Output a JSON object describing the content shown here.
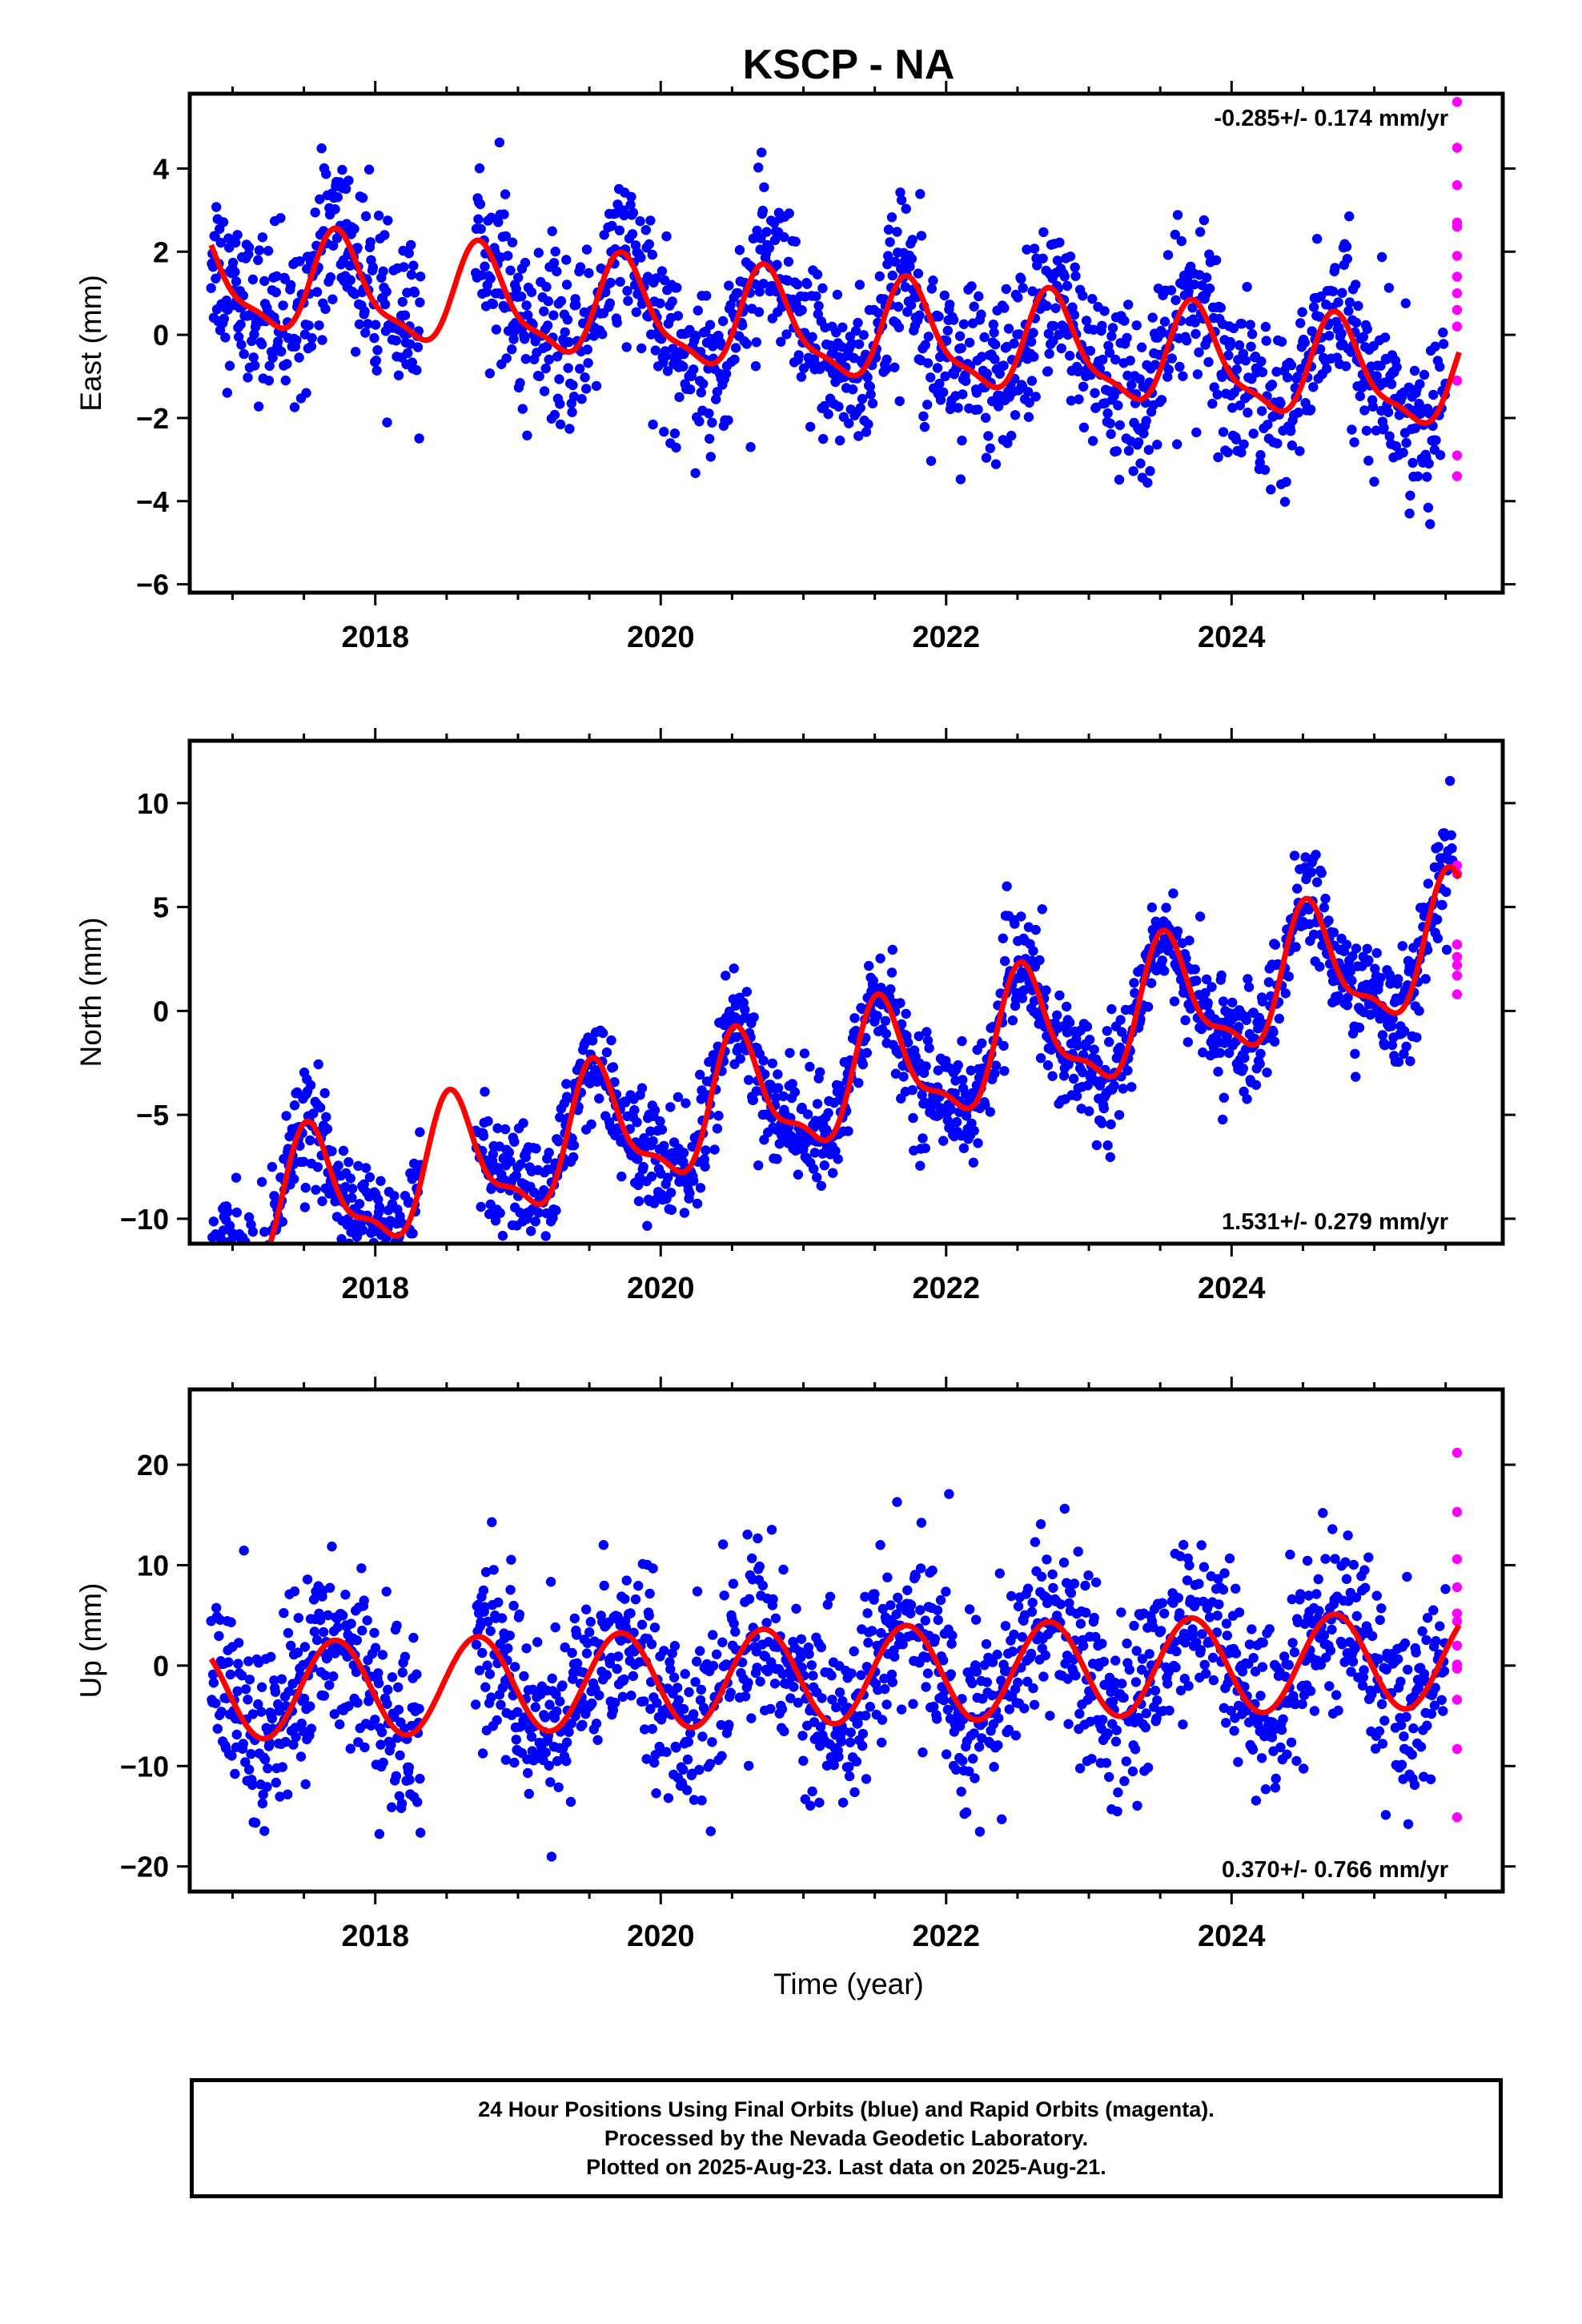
{
  "title": "KSCP - NA",
  "xlabel": "Time (year)",
  "caption": [
    "24 Hour Positions Using Final Orbits (blue) and Rapid Orbits (magenta).",
    "Processed by the Nevada Geodetic Laboratory.",
    "Plotted on 2025-Aug-23. Last data on 2025-Aug-21."
  ],
  "colors": {
    "final_orbits": "#0000ff",
    "rapid_orbits": "#ff00ff",
    "model": "#ff0000"
  },
  "chart_data": [
    {
      "type": "scatter",
      "name": "east",
      "ylabel": "East (mm)",
      "xlim": [
        2016.7,
        2025.9
      ],
      "ylim": [
        -6.2,
        5.8
      ],
      "xticks": [
        2018,
        2020,
        2022,
        2024
      ],
      "yticks": [
        -6,
        -4,
        -2,
        0,
        2,
        4
      ],
      "rate_label": "-0.285+/- 0.174 mm/yr",
      "rate_label_position": "top-right",
      "grid": false,
      "model": {
        "offset": 0.1,
        "trend": -0.285,
        "annual_amp": 1.15,
        "annual_peak": 0.75,
        "semi_amp": 0.35,
        "semi_phase": 0.2
      },
      "final_orbit_points": {
        "start": 2016.85,
        "end": 2025.5,
        "gaps": [
          [
            2018.32,
            2018.7
          ]
        ],
        "scatter_sd": 1.0
      },
      "rapid_orbit_points": {
        "x": 2025.58,
        "values": [
          5.6,
          4.5,
          3.6,
          2.7,
          2.6,
          1.9,
          1.4,
          1.0,
          0.6,
          0.2,
          -1.1,
          -2.9,
          -3.4
        ]
      }
    },
    {
      "type": "scatter",
      "name": "north",
      "ylabel": "North (mm)",
      "xlim": [
        2016.7,
        2025.9
      ],
      "ylim": [
        -11.2,
        13.0
      ],
      "xticks": [
        2018,
        2020,
        2022,
        2024
      ],
      "yticks": [
        -10,
        -5,
        0,
        5,
        10
      ],
      "rate_label": "1.531+/- 0.279 mm/yr",
      "rate_label_position": "bottom-right",
      "grid": false,
      "model": {
        "offset": -3.5,
        "trend": 1.531,
        "annual_amp": 2.9,
        "annual_peak": 0.55,
        "semi_amp": 1.0,
        "semi_phase": 0.5
      },
      "final_orbit_points": {
        "start": 2016.85,
        "end": 2025.55,
        "gaps": [
          [
            2018.32,
            2018.7
          ]
        ],
        "scatter_sd": 1.3
      },
      "rapid_orbit_points": {
        "x": 2025.58,
        "values": [
          7.0,
          6.6,
          3.2,
          2.6,
          2.2,
          1.7,
          0.8
        ]
      }
    },
    {
      "type": "scatter",
      "name": "up",
      "ylabel": "Up (mm)",
      "xlim": [
        2016.7,
        2025.9
      ],
      "ylim": [
        -22.5,
        27.5
      ],
      "xticks": [
        2018,
        2020,
        2022,
        2024
      ],
      "yticks": [
        -20,
        -10,
        0,
        10,
        20
      ],
      "rate_label": "0.370+/- 0.766 mm/yr",
      "rate_label_position": "bottom-right",
      "grid": false,
      "model": {
        "offset": -1.0,
        "trend": 0.37,
        "annual_amp": 4.8,
        "annual_peak": 0.72,
        "semi_amp": 0.0,
        "semi_phase": 0.0
      },
      "final_orbit_points": {
        "start": 2016.85,
        "end": 2025.5,
        "gaps": [
          [
            2018.32,
            2018.7
          ]
        ],
        "scatter_sd": 4.5
      },
      "rapid_orbit_points": {
        "x": 2025.58,
        "values": [
          21.2,
          15.3,
          10.6,
          7.8,
          5.2,
          4.4,
          2.0,
          0.1,
          -0.3,
          -3.4,
          -8.3,
          -15.1
        ]
      }
    }
  ]
}
